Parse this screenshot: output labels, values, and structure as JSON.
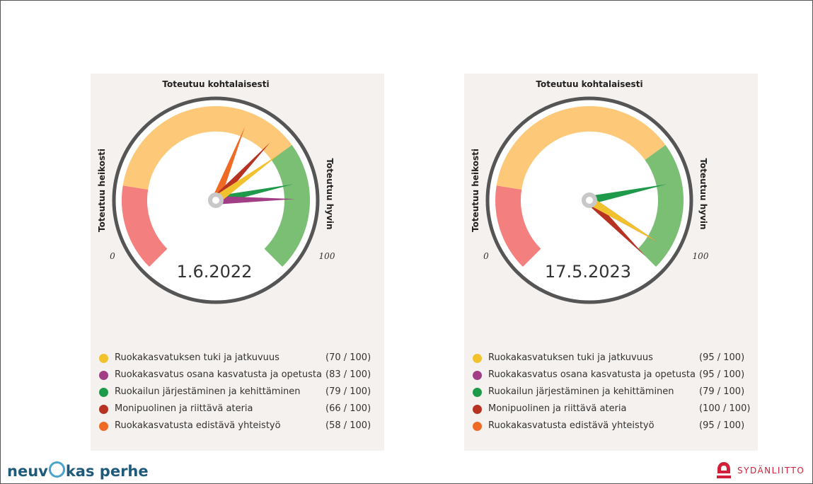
{
  "brand": {
    "left_logo_pre": "neuv",
    "left_logo_post": "kas perhe",
    "right_logo": "SYDÄNLIITTO",
    "right_logo_color": "#d3203a",
    "left_logo_color": "#1e5a7a"
  },
  "gauge_labels": {
    "top": "Toteutuu kohtalaisesti",
    "left": "Toteutuu heikosti",
    "right": "Toteutuu hyvin",
    "min": "0",
    "max": "100"
  },
  "colors": {
    "zone_low": "#f47f7f",
    "zone_mid": "#fdc878",
    "zone_high": "#7bbf74",
    "rim": "#555555",
    "panel_bg": "#f4f1ee"
  },
  "chart_data": [
    {
      "type": "gauge",
      "title": "1.6.2022",
      "range": [
        0,
        100
      ],
      "zones": [
        {
          "label": "Toteutuu heikosti",
          "from": 0,
          "to": 20,
          "color": "#f47f7f"
        },
        {
          "label": "Toteutuu kohtalaisesti",
          "from": 20,
          "to": 70,
          "color": "#fdc878"
        },
        {
          "label": "Toteutuu hyvin",
          "from": 70,
          "to": 100,
          "color": "#7bbf74"
        }
      ],
      "series": [
        {
          "name": "Ruokakasvatuksen tuki ja jatkuvuus",
          "value": 70,
          "display": "(70 / 100)",
          "color": "#f2c12e"
        },
        {
          "name": "Ruokakasvatus osana kasvatusta ja opetusta",
          "value": 83,
          "display": "(83 / 100)",
          "color": "#a23e86"
        },
        {
          "name": "Ruokailun järjestäminen ja kehittäminen",
          "value": 79,
          "display": "(79 / 100)",
          "color": "#1f9a4a"
        },
        {
          "name": "Monipuolinen ja riittävä ateria",
          "value": 66,
          "display": "(66 / 100)",
          "color": "#b83222"
        },
        {
          "name": "Ruokakasvatusta edistävä yhteistyö",
          "value": 58,
          "display": "(58 / 100)",
          "color": "#ef6a24"
        }
      ]
    },
    {
      "type": "gauge",
      "title": "17.5.2023",
      "range": [
        0,
        100
      ],
      "zones": [
        {
          "label": "Toteutuu heikosti",
          "from": 0,
          "to": 20,
          "color": "#f47f7f"
        },
        {
          "label": "Toteutuu kohtalaisesti",
          "from": 20,
          "to": 70,
          "color": "#fdc878"
        },
        {
          "label": "Toteutuu hyvin",
          "from": 70,
          "to": 100,
          "color": "#7bbf74"
        }
      ],
      "series": [
        {
          "name": "Ruokakasvatuksen tuki ja jatkuvuus",
          "value": 95,
          "display": "(95 / 100)",
          "color": "#f2c12e"
        },
        {
          "name": "Ruokakasvatus osana kasvatusta ja opetusta",
          "value": 95,
          "display": "(95 / 100)",
          "color": "#a23e86"
        },
        {
          "name": "Ruokailun järjestäminen ja kehittäminen",
          "value": 79,
          "display": "(79 / 100)",
          "color": "#1f9a4a"
        },
        {
          "name": "Monipuolinen ja riittävä ateria",
          "value": 100,
          "display": "(100 / 100)",
          "color": "#b83222"
        },
        {
          "name": "Ruokakasvatusta edistävä yhteistyö",
          "value": 95,
          "display": "(95 / 100)",
          "color": "#ef6a24"
        }
      ]
    }
  ]
}
